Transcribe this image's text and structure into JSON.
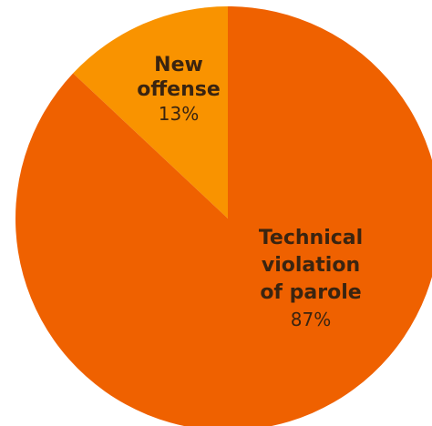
{
  "chart_data": {
    "type": "pie",
    "start_angle_deg": 0,
    "direction": "counterclockwise",
    "slices": [
      {
        "label_lines": [
          "New",
          "offense"
        ],
        "value": 13,
        "value_label": "13%",
        "color": "#F99300"
      },
      {
        "label_lines": [
          "Technical",
          "violation",
          "of parole"
        ],
        "value": 87,
        "value_label": "87%",
        "color": "#EF6100"
      }
    ],
    "label_text_color": "#3a2410",
    "legend": "none"
  }
}
